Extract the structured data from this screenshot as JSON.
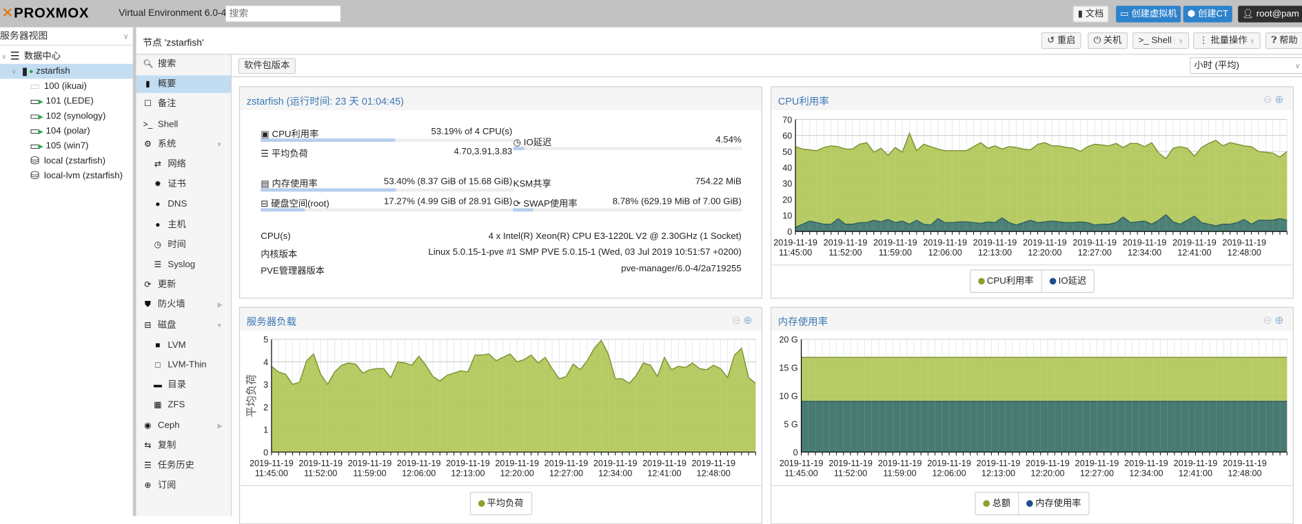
{
  "topbar": {
    "logo": "PROXMOX",
    "product": "Virtual Environment 6.0-4",
    "search_placeholder": "搜索",
    "docs_label": "文档",
    "create_vm_label": "创建虚拟机",
    "create_ct_label": "创建CT",
    "user_label": "root@pam"
  },
  "tree": {
    "view_label": "服务器视图",
    "items": [
      {
        "label": "数据中心",
        "icon": "datacenter-icon"
      },
      {
        "label": "zstarfish",
        "icon": "node-online-icon",
        "selected": true
      },
      {
        "label": "100 (ikuai)",
        "icon": "vm-stopped-icon"
      },
      {
        "label": "101 (LEDE)",
        "icon": "vm-running-icon"
      },
      {
        "label": "102 (synology)",
        "icon": "vm-running-icon"
      },
      {
        "label": "104 (polar)",
        "icon": "vm-running-icon"
      },
      {
        "label": "105 (win7)",
        "icon": "vm-running-icon"
      },
      {
        "label": "local (zstarfish)",
        "icon": "storage-icon"
      },
      {
        "label": "local-lvm (zstarfish)",
        "icon": "storage-icon"
      }
    ]
  },
  "node_header": {
    "title": "节点 'zstarfish'",
    "reboot_label": "重启",
    "shutdown_label": "关机",
    "shell_label": "Shell",
    "bulk_label": "批量操作",
    "help_label": "帮助"
  },
  "nav": {
    "items": [
      {
        "label": "搜索",
        "icon": "search-icon"
      },
      {
        "label": "概要",
        "icon": "book-icon",
        "selected": true
      },
      {
        "label": "备注",
        "icon": "note-icon"
      },
      {
        "label": "Shell",
        "icon": "terminal-icon"
      },
      {
        "label": "系统",
        "icon": "gears-icon",
        "expanded": true
      },
      {
        "label": "网络",
        "icon": "exchange-icon",
        "sub": true
      },
      {
        "label": "证书",
        "icon": "certificate-icon",
        "sub": true
      },
      {
        "label": "DNS",
        "icon": "globe-icon",
        "sub": true
      },
      {
        "label": "主机",
        "icon": "globe-icon",
        "sub": true
      },
      {
        "label": "时间",
        "icon": "clock-icon",
        "sub": true
      },
      {
        "label": "Syslog",
        "icon": "list-icon",
        "sub": true
      },
      {
        "label": "更新",
        "icon": "refresh-icon"
      },
      {
        "label": "防火墙",
        "icon": "shield-icon",
        "collapsed": true
      },
      {
        "label": "磁盘",
        "icon": "hdd-icon",
        "expanded": true
      },
      {
        "label": "LVM",
        "icon": "square-icon",
        "sub": true
      },
      {
        "label": "LVM-Thin",
        "icon": "square-outline-icon",
        "sub": true
      },
      {
        "label": "目录",
        "icon": "folder-icon",
        "sub": true
      },
      {
        "label": "ZFS",
        "icon": "grid-icon",
        "sub": true
      },
      {
        "label": "Ceph",
        "icon": "ceph-icon",
        "collapsed": true
      },
      {
        "label": "复制",
        "icon": "retweet-icon"
      },
      {
        "label": "任务历史",
        "icon": "list-icon"
      },
      {
        "label": "订阅",
        "icon": "support-icon"
      }
    ]
  },
  "toolbar": {
    "packages_label": "软件包版本",
    "timeframe_value": "小时 (平均)"
  },
  "status": {
    "title": "zstarfish (运行时间: 23 天 01:04:45)",
    "cpu": {
      "label": "CPU利用率",
      "value": "53.19% of 4 CPU(s)",
      "percent": 53.19
    },
    "load": {
      "label": "平均负荷",
      "value": "4.70,3.91,3.83"
    },
    "io": {
      "label": "IO延迟",
      "value": "4.54%",
      "percent": 4.54
    },
    "mem": {
      "label": "内存使用率",
      "value": "53.40% (8.37 GiB of 15.68 GiB)",
      "percent": 53.4
    },
    "ksm": {
      "label": "KSM共享",
      "value": "754.22 MiB"
    },
    "disk": {
      "label": "硬盘空间(root)",
      "value": "17.27% (4.99 GiB of 28.91 GiB)",
      "percent": 17.27
    },
    "swap": {
      "label": "SWAP使用率",
      "value": "8.78% (629.19 MiB of 7.00 GiB)",
      "percent": 8.78
    },
    "cpus": {
      "label": "CPU(s)",
      "value": "4 x Intel(R) Xeon(R) CPU E3-1220L V2 @ 2.30GHz (1 Socket)"
    },
    "kernel": {
      "label": "内核版本",
      "value": "Linux 5.0.15-1-pve #1 SMP PVE 5.0.15-1 (Wed, 03 Jul 2019 10:51:57 +0200)"
    },
    "pve": {
      "label": "PVE管理器版本",
      "value": "pve-manager/6.0-4/2a719255"
    }
  },
  "chart_data": [
    {
      "type": "area",
      "title": "CPU利用率",
      "x_start": "2019-11-19 11:45:00",
      "x_step_minutes": 1,
      "x_tick_labels": [
        [
          "2019-11-19",
          "11:45:00"
        ],
        [
          "2019-11-19",
          "11:52:00"
        ],
        [
          "2019-11-19",
          "11:59:00"
        ],
        [
          "2019-11-19",
          "12:06:00"
        ],
        [
          "2019-11-19",
          "12:13:00"
        ],
        [
          "2019-11-19",
          "12:20:00"
        ],
        [
          "2019-11-19",
          "12:27:00"
        ],
        [
          "2019-11-19",
          "12:34:00"
        ],
        [
          "2019-11-19",
          "12:41:00"
        ],
        [
          "2019-11-19",
          "12:48:00"
        ]
      ],
      "ylim": [
        0,
        70
      ],
      "y_ticks": [
        "0",
        "10",
        "20",
        "30",
        "40",
        "50",
        "60",
        "70"
      ],
      "y_tick_values": [
        0,
        10,
        20,
        30,
        40,
        50,
        60,
        70
      ],
      "ylabel": "",
      "grid": true,
      "legend": "bottom",
      "series": [
        {
          "name": "CPU利用率",
          "color": "#b0c756",
          "stroke": "#7a9030",
          "legend_color": "#8aa12a",
          "values": [
            53,
            51.5,
            51,
            50.5,
            52.5,
            53.5,
            53,
            51.5,
            51.5,
            54.5,
            55.5,
            49.5,
            52,
            47.5,
            52.5,
            49.5,
            61.5,
            50.5,
            54.5,
            53,
            51.5,
            50.5,
            50.5,
            50.5,
            50.5,
            53,
            55.5,
            52,
            53.5,
            51.5,
            53,
            52.5,
            51.5,
            51,
            54.5,
            55.5,
            53.5,
            53.5,
            52.5,
            52,
            50,
            53,
            54.5,
            54,
            53.5,
            55,
            52.5,
            55,
            55,
            53,
            55.5,
            49,
            45.5,
            52,
            53,
            52,
            47,
            52.5,
            55,
            57,
            53.5,
            55.5,
            54.5,
            53.5,
            53,
            50,
            49.5,
            49,
            46.5,
            50
          ]
        },
        {
          "name": "IO延迟",
          "color": "#437a78",
          "stroke": "#2e5d5c",
          "legend_color": "#1f4e8c",
          "values": [
            2.5,
            4.5,
            6.5,
            5.5,
            4.5,
            4.5,
            8,
            4.5,
            4.5,
            5.5,
            5.5,
            7,
            6,
            7.5,
            5.5,
            6.5,
            4.5,
            7,
            4.5,
            4,
            8,
            5.5,
            5.5,
            6,
            6,
            5.5,
            5,
            6,
            5.5,
            8.5,
            5.5,
            4,
            5.5,
            7,
            5.5,
            6,
            6.5,
            6,
            5.5,
            5.5,
            6,
            5.5,
            4,
            4.5,
            4.5,
            5.5,
            9,
            5.5,
            6,
            6.5,
            4.5,
            7,
            10.5,
            6,
            4.5,
            7,
            9.5,
            5.5,
            4.5,
            3.5,
            4.5,
            4.5,
            5.5,
            7.5,
            4.5,
            7,
            7,
            7,
            8,
            7
          ]
        }
      ]
    },
    {
      "type": "area",
      "title": "服务器负载",
      "x_start": "2019-11-19 11:45:00",
      "x_step_minutes": 1,
      "x_tick_labels": [
        [
          "2019-11-19",
          "11:45:00"
        ],
        [
          "2019-11-19",
          "11:52:00"
        ],
        [
          "2019-11-19",
          "11:59:00"
        ],
        [
          "2019-11-19",
          "12:06:00"
        ],
        [
          "2019-11-19",
          "12:13:00"
        ],
        [
          "2019-11-19",
          "12:20:00"
        ],
        [
          "2019-11-19",
          "12:27:00"
        ],
        [
          "2019-11-19",
          "12:34:00"
        ],
        [
          "2019-11-19",
          "12:41:00"
        ],
        [
          "2019-11-19",
          "12:48:00"
        ]
      ],
      "ylim": [
        0,
        5
      ],
      "y_ticks": [
        "0",
        "1",
        "2",
        "3",
        "4",
        "5"
      ],
      "y_tick_values": [
        0,
        1,
        2,
        3,
        4,
        5
      ],
      "ylabel": "平均负荷",
      "grid": true,
      "legend": "bottom",
      "series": [
        {
          "name": "平均负荷",
          "color": "#b0c756",
          "stroke": "#7a9030",
          "legend_color": "#8aa12a",
          "values": [
            3.8,
            3.55,
            3.45,
            3.0,
            3.1,
            4.05,
            4.35,
            3.45,
            3.0,
            3.55,
            3.85,
            3.95,
            3.9,
            3.5,
            3.65,
            3.7,
            3.7,
            3.3,
            4.0,
            3.95,
            3.85,
            4.25,
            3.85,
            3.35,
            3.15,
            3.4,
            3.5,
            3.6,
            3.55,
            4.3,
            4.3,
            4.35,
            4.05,
            4.2,
            4.35,
            4.0,
            4.1,
            4.3,
            3.95,
            4.2,
            3.7,
            3.25,
            3.35,
            3.9,
            3.65,
            4.05,
            4.6,
            4.95,
            4.35,
            3.25,
            3.25,
            3.05,
            3.4,
            3.95,
            3.85,
            3.35,
            4.2,
            3.65,
            3.8,
            3.75,
            3.95,
            3.7,
            3.65,
            3.85,
            3.7,
            3.3,
            4.3,
            4.6,
            3.3,
            3.05
          ]
        }
      ]
    },
    {
      "type": "area",
      "title": "内存使用率",
      "x_start": "2019-11-19 11:45:00",
      "x_step_minutes": 1,
      "x_tick_labels": [
        [
          "2019-11-19",
          "11:45:00"
        ],
        [
          "2019-11-19",
          "11:52:00"
        ],
        [
          "2019-11-19",
          "11:59:00"
        ],
        [
          "2019-11-19",
          "12:06:00"
        ],
        [
          "2019-11-19",
          "12:13:00"
        ],
        [
          "2019-11-19",
          "12:20:00"
        ],
        [
          "2019-11-19",
          "12:27:00"
        ],
        [
          "2019-11-19",
          "12:34:00"
        ],
        [
          "2019-11-19",
          "12:41:00"
        ],
        [
          "2019-11-19",
          "12:48:00"
        ]
      ],
      "ylim": [
        0,
        20
      ],
      "y_ticks": [
        "0",
        "5 G",
        "10 G",
        "15 G",
        "20 G"
      ],
      "y_tick_values": [
        0,
        5,
        10,
        15,
        20
      ],
      "ylabel": "",
      "grid": true,
      "legend": "bottom",
      "series": [
        {
          "name": "总额",
          "color": "#b0c756",
          "stroke": "#7a9030",
          "legend_color": "#8aa12a",
          "values": [
            16.8,
            16.8,
            16.8,
            16.8,
            16.8,
            16.8,
            16.8,
            16.8,
            16.8,
            16.8,
            16.8,
            16.8,
            16.8,
            16.8,
            16.8,
            16.8,
            16.8,
            16.8,
            16.8,
            16.8,
            16.8,
            16.8,
            16.8,
            16.8,
            16.8,
            16.8,
            16.8,
            16.8,
            16.8,
            16.8,
            16.8,
            16.8,
            16.8,
            16.8,
            16.8,
            16.8,
            16.8,
            16.8,
            16.8,
            16.8,
            16.8,
            16.8,
            16.8,
            16.8,
            16.8,
            16.8,
            16.8,
            16.8,
            16.8,
            16.8,
            16.8,
            16.8,
            16.8,
            16.8,
            16.8,
            16.8,
            16.8,
            16.8,
            16.8,
            16.8,
            16.8,
            16.8,
            16.8,
            16.8,
            16.8,
            16.8,
            16.8,
            16.8,
            16.8,
            16.8
          ]
        },
        {
          "name": "内存使用率",
          "color": "#3f7373",
          "stroke": "#2e5858",
          "legend_color": "#1f4e8c",
          "values": [
            9.0,
            9.0,
            9.0,
            9.0,
            9.0,
            9.0,
            9.0,
            9.0,
            9.0,
            9.0,
            9.0,
            9.0,
            9.0,
            9.0,
            9.0,
            9.0,
            9.0,
            9.0,
            9.0,
            9.0,
            9.0,
            9.0,
            9.0,
            9.0,
            9.0,
            9.0,
            9.0,
            9.0,
            9.0,
            9.0,
            9.0,
            9.0,
            9.0,
            9.0,
            9.0,
            9.0,
            9.0,
            9.0,
            9.0,
            9.0,
            9.0,
            9.0,
            9.0,
            9.0,
            9.0,
            9.0,
            9.0,
            9.0,
            9.0,
            9.0,
            9.0,
            9.0,
            9.0,
            9.0,
            9.0,
            9.0,
            9.0,
            9.0,
            9.0,
            9.0,
            9.0,
            9.0,
            9.0,
            9.0,
            9.0,
            9.0,
            9.0,
            9.0,
            9.0,
            9.0
          ]
        }
      ]
    }
  ]
}
